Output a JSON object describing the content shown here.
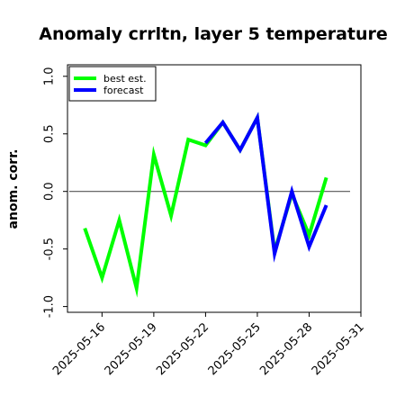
{
  "chart_data": {
    "type": "line",
    "title": "Anomaly crrltn, layer 5 temperature",
    "ylabel": "anom. corr.",
    "xlabel": "",
    "ylim": [
      -1.05,
      1.1
    ],
    "yticks": [
      -1.0,
      -0.5,
      0.0,
      0.5,
      1.0
    ],
    "ytick_labels": [
      "-1.0",
      "-0.5",
      "0.0",
      "0.5",
      "1.0"
    ],
    "xlim": [
      "2025-05-14",
      "2025-05-31"
    ],
    "xticks": [
      "2025-05-16",
      "2025-05-19",
      "2025-05-22",
      "2025-05-25",
      "2025-05-28",
      "2025-05-31"
    ],
    "xtick_labels": [
      "2025-05-16",
      "2025-05-19",
      "2025-05-22",
      "2025-05-25",
      "2025-05-28",
      "2025-05-31"
    ],
    "highlighted_xtick": "2025-05-22",
    "highlight_color": "#008000",
    "reference_line_y": 0.0,
    "grid": false,
    "legend_position": "upper-left",
    "x": [
      "2025-05-15",
      "2025-05-16",
      "2025-05-17",
      "2025-05-18",
      "2025-05-19",
      "2025-05-20",
      "2025-05-21",
      "2025-05-22",
      "2025-05-23",
      "2025-05-24",
      "2025-05-25",
      "2025-05-26",
      "2025-05-27",
      "2025-05-28",
      "2025-05-29"
    ],
    "series": [
      {
        "name": "best est.",
        "color": "#00ff00",
        "values": [
          -0.32,
          -0.75,
          -0.25,
          -0.84,
          0.32,
          -0.21,
          0.45,
          0.4,
          0.6,
          0.36,
          0.64,
          -0.52,
          -0.02,
          -0.38,
          0.12
        ]
      },
      {
        "name": "forecast",
        "color": "#0000ff",
        "values": [
          null,
          null,
          null,
          null,
          null,
          null,
          null,
          0.42,
          0.6,
          0.36,
          0.64,
          -0.54,
          0.0,
          -0.48,
          -0.12
        ]
      }
    ]
  }
}
